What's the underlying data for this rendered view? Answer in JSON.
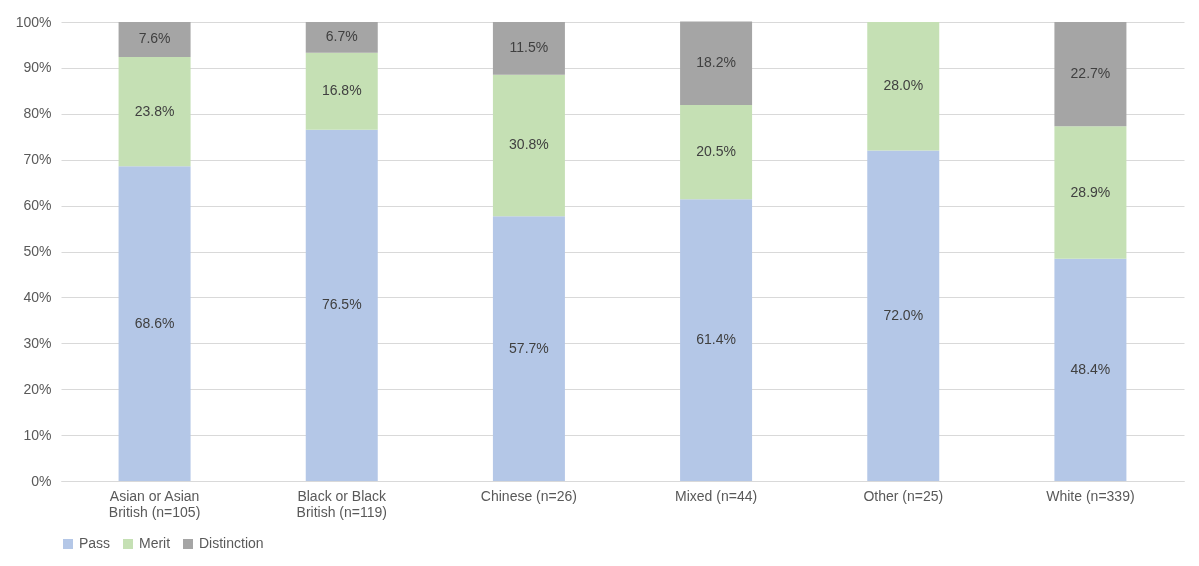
{
  "chart_data": {
    "type": "bar",
    "stacked": true,
    "categories": [
      "Asian or Asian British (n=105)",
      "Black or Black British (n=119)",
      "Chinese (n=26)",
      "Mixed (n=44)",
      "Other (n=25)",
      "White (n=339)"
    ],
    "series": [
      {
        "name": "Pass",
        "color": "#b4c7e7",
        "values": [
          68.6,
          76.5,
          57.7,
          61.4,
          72.0,
          48.4
        ],
        "value_labels": [
          "68.6%",
          "76.5%",
          "57.7%",
          "61.4%",
          "72.0%",
          "48.4%"
        ]
      },
      {
        "name": "Merit",
        "color": "#c5e0b4",
        "values": [
          23.8,
          16.8,
          30.8,
          20.5,
          28.0,
          28.9
        ],
        "value_labels": [
          "23.8%",
          "16.8%",
          "30.8%",
          "20.5%",
          "28.0%",
          "28.9%"
        ]
      },
      {
        "name": "Distinction",
        "color": "#a5a5a5",
        "values": [
          7.6,
          6.7,
          11.5,
          18.2,
          null,
          22.7
        ],
        "value_labels": [
          "7.6%",
          "6.7%",
          "11.5%",
          "18.2%",
          null,
          "22.7%"
        ]
      }
    ],
    "ylim": [
      0,
      100
    ],
    "yticks": [
      {
        "value": 0,
        "label": "0%"
      },
      {
        "value": 10,
        "label": "10%"
      },
      {
        "value": 20,
        "label": "20%"
      },
      {
        "value": 30,
        "label": "30%"
      },
      {
        "value": 40,
        "label": "40%"
      },
      {
        "value": 50,
        "label": "50%"
      },
      {
        "value": 60,
        "label": "60%"
      },
      {
        "value": 70,
        "label": "70%"
      },
      {
        "value": 80,
        "label": "80%"
      },
      {
        "value": 90,
        "label": "90%"
      },
      {
        "value": 100,
        "label": "100%"
      }
    ],
    "grid": "y",
    "legend": "bottom"
  }
}
